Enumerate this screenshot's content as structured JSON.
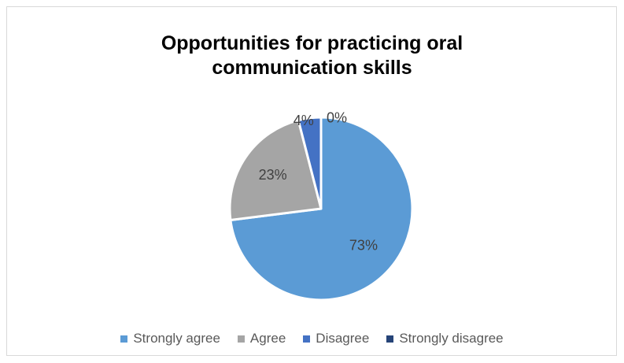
{
  "chart_data": {
    "type": "pie",
    "title": "Opportunities for practicing oral\ncommunication skills",
    "categories": [
      "Strongly agree",
      "Agree",
      "Disagree",
      "Strongly disagree"
    ],
    "values": [
      73,
      23,
      4,
      0
    ],
    "labels": [
      "73%",
      "23%",
      "4%",
      "0%"
    ],
    "colors": [
      "#5b9bd5",
      "#a5a5a5",
      "#4472c4",
      "#264478"
    ],
    "legend": "bottom"
  }
}
